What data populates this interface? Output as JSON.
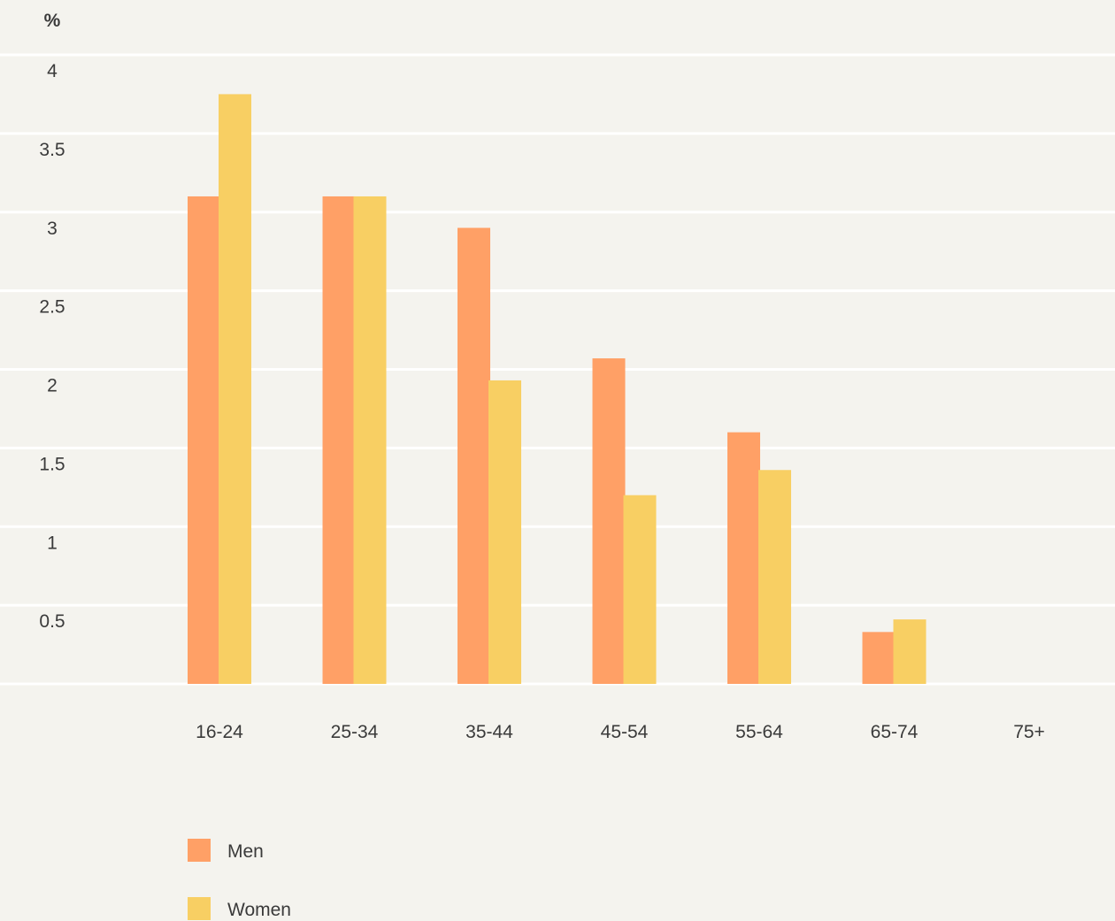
{
  "chart_data": {
    "type": "bar",
    "ylabel": "%",
    "ylim": [
      0,
      4
    ],
    "yticks": [
      0.5,
      1,
      1.5,
      2,
      2.5,
      3,
      3.5,
      4
    ],
    "grid": true,
    "legend_position": "bottom-left",
    "categories": [
      "16-24",
      "25-34",
      "35-44",
      "45-54",
      "55-64",
      "65-74",
      "75+"
    ],
    "series": [
      {
        "name": "Men",
        "color": "#ffa066",
        "values": [
          3.1,
          3.1,
          2.9,
          2.07,
          1.6,
          0.33,
          0
        ]
      },
      {
        "name": "Women",
        "color": "#f8cf63",
        "values": [
          3.75,
          3.1,
          1.93,
          1.2,
          1.36,
          0.41,
          0
        ]
      }
    ]
  }
}
